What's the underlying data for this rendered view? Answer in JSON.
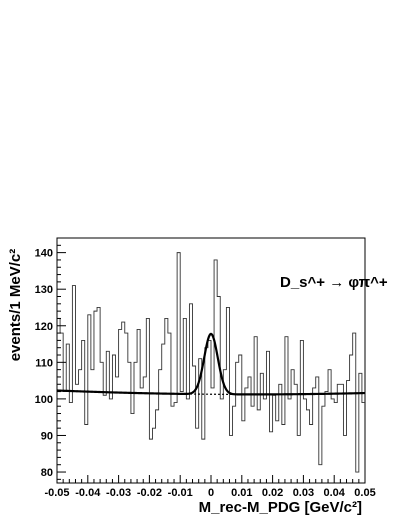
{
  "chart_data": {
    "type": "line",
    "xlabel": "M_rec-M_PDG [GeV/c²]",
    "ylabel": "events/1 MeV/c²",
    "xlim": [
      -0.05,
      0.05
    ],
    "ylim": [
      77,
      144
    ],
    "x_ticks": [
      "-0.05",
      "-0.04",
      "-0.03",
      "-0.02",
      "-0.01",
      "0",
      "0.01",
      "0.02",
      "0.03",
      "0.04",
      "0.05"
    ],
    "y_ticks": [
      "80",
      "90",
      "100",
      "110",
      "120",
      "130",
      "140"
    ],
    "annotation": "D_s^+ → φπ^+",
    "grid": false,
    "legend": "none",
    "series": [
      {
        "kind": "histogram",
        "bin_width": 0.001,
        "x_start": -0.05,
        "values": [
          122,
          118,
          102,
          115,
          99,
          131,
          104,
          108,
          116,
          93,
          123,
          108,
          124,
          125,
          110,
          101,
          113,
          100,
          112,
          106,
          119,
          121,
          118,
          110,
          96,
          110,
          119,
          103,
          106,
          122,
          89,
          92,
          97,
          108,
          115,
          122,
          118,
          98,
          99,
          140,
          102,
          122,
          100,
          126,
          109,
          92,
          111,
          89,
          114,
          116,
          103,
          138,
          128,
          100,
          108,
          125,
          90,
          98,
          110,
          112,
          94,
          103,
          106,
          98,
          117,
          97,
          107,
          100,
          113,
          91,
          101,
          94,
          104,
          93,
          117,
          100,
          108,
          104,
          90,
          116,
          100,
          97,
          93,
          103,
          106,
          82,
          98,
          102,
          108,
          100,
          99,
          104,
          104,
          90,
          105,
          112,
          118,
          80,
          107,
          99
        ]
      },
      {
        "kind": "fit",
        "style": "solid",
        "description": "fitted curve",
        "background_poly": [
          101.6,
          -2,
          2.7
        ],
        "signal": {
          "amplitude": 16.5,
          "mean": 0.0,
          "sigma": 0.0022
        }
      },
      {
        "kind": "fit",
        "style": "dashed",
        "description": "background only under the peak",
        "range": [
          -0.012,
          0.012
        ]
      }
    ]
  }
}
